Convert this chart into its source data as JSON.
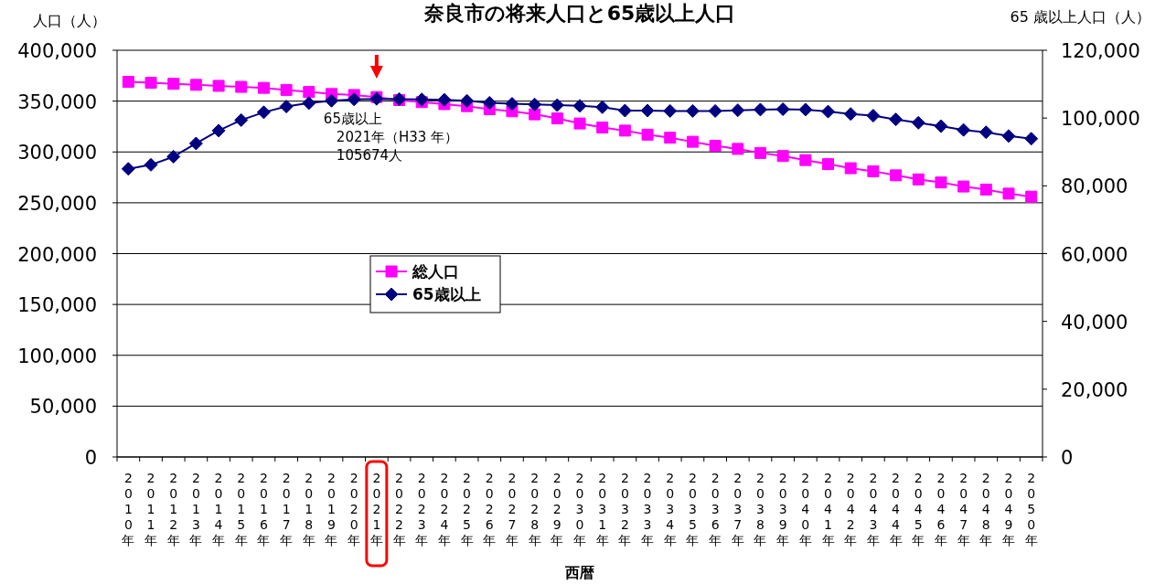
{
  "chart_data": {
    "type": "line",
    "title": "奈良市の将来人口と65歳以上人口",
    "xlabel": "西暦",
    "ylabel": "人口（人）",
    "y2label": "65 歳以上人口（人）",
    "categories": [
      "2010年",
      "2011年",
      "2012年",
      "2013年",
      "2014年",
      "2015年",
      "2016年",
      "2017年",
      "2018年",
      "2019年",
      "2020年",
      "2021年",
      "2022年",
      "2023年",
      "2024年",
      "2025年",
      "2026年",
      "2027年",
      "2028年",
      "2029年",
      "2030年",
      "2031年",
      "2032年",
      "2033年",
      "2034年",
      "2035年",
      "2036年",
      "2037年",
      "2038年",
      "2039年",
      "2040年",
      "2041年",
      "2042年",
      "2043年",
      "2044年",
      "2045年",
      "2046年",
      "2047年",
      "2048年",
      "2049年",
      "2050年"
    ],
    "series": [
      {
        "name": "総人口",
        "color": "#ff00ff",
        "marker": "square",
        "values": [
          369000,
          368000,
          367000,
          366000,
          365000,
          364000,
          363000,
          361000,
          359000,
          357000,
          356000,
          354000,
          351000,
          349000,
          347000,
          345000,
          342000,
          340000,
          337000,
          333000,
          328000,
          324000,
          321000,
          317000,
          314000,
          310000,
          306000,
          303000,
          299000,
          296000,
          292000,
          288000,
          284000,
          281000,
          277000,
          273000,
          270000,
          266000,
          263000,
          259000,
          256000
        ]
      },
      {
        "name": "65歳以上",
        "color": "#000080",
        "marker": "diamond",
        "axis": "y2",
        "values": [
          85000,
          86200,
          88600,
          92500,
          96300,
          99400,
          101700,
          103400,
          104400,
          105100,
          105500,
          105674,
          105600,
          105500,
          105400,
          105100,
          104500,
          104200,
          104000,
          103800,
          103600,
          103200,
          102200,
          102200,
          102100,
          102100,
          102100,
          102300,
          102500,
          102600,
          102500,
          101900,
          101200,
          100700,
          99600,
          98600,
          97600,
          96500,
          95800,
          94700,
          93900
        ]
      }
    ],
    "ylim": [
      0,
      400000
    ],
    "yticks": [
      0,
      {
        "value": 50000,
        "label": "50,000"
      },
      {
        "value": 100000,
        "label": "100,000"
      },
      {
        "value": 150000,
        "label": "150,000"
      },
      {
        "value": 200000,
        "label": "200,000"
      },
      {
        "value": 250000,
        "label": "250,000"
      },
      {
        "value": 300000,
        "label": "300,000"
      },
      {
        "value": 350000,
        "label": "350,000"
      },
      {
        "value": 400000,
        "label": "400,000"
      }
    ],
    "y2lim": [
      0,
      120000
    ],
    "y2ticks": [
      0,
      {
        "value": 20000,
        "label": "20,000"
      },
      {
        "value": 40000,
        "label": "40,000"
      },
      {
        "value": 60000,
        "label": "60,000"
      },
      {
        "value": 80000,
        "label": "80,000"
      },
      {
        "value": 100000,
        "label": "100,000"
      },
      {
        "value": 120000,
        "label": "120,000"
      }
    ],
    "grid": "y",
    "legend": "center",
    "annotations": [
      "65歳以上\n2021年（H33 年）\n105674人"
    ]
  }
}
